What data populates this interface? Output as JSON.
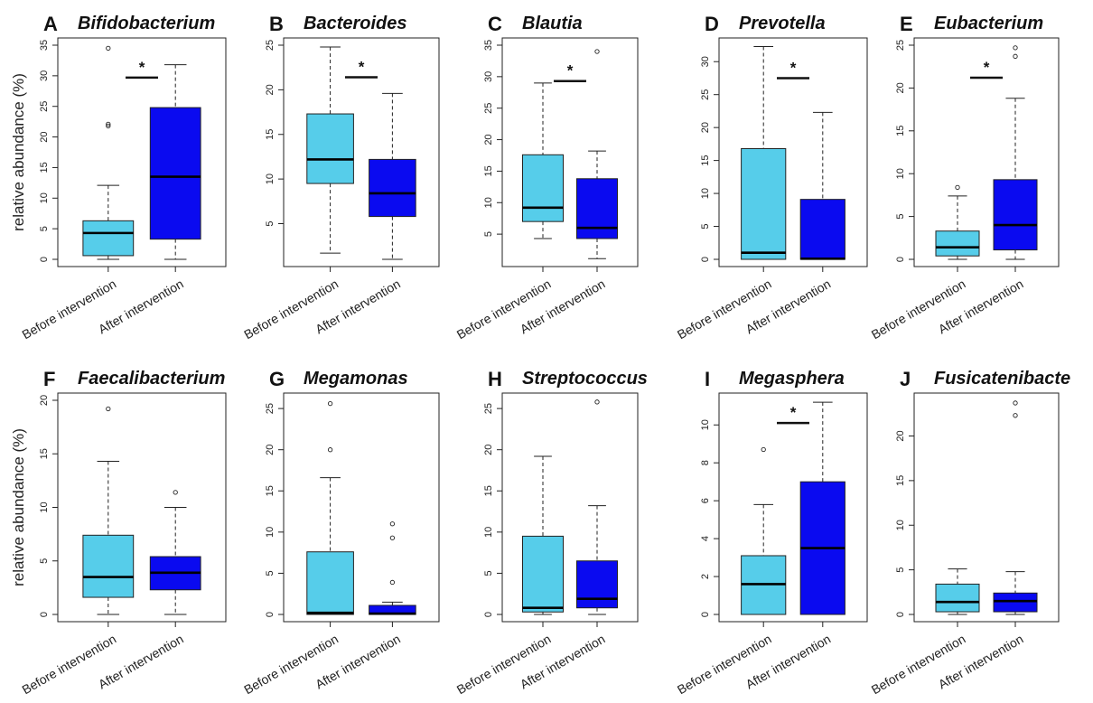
{
  "colors": {
    "before": "#56cdea",
    "after": "#0a0af0",
    "median": "#000000",
    "frame": "#222222"
  },
  "chart_data": [
    {
      "type": "box",
      "letter": "A",
      "title": "Bifidobacterium",
      "ylabel": "relative abundance (%)",
      "ylim": [
        0,
        35
      ],
      "yticks": [
        0,
        5,
        10,
        15,
        20,
        25,
        30,
        35
      ],
      "categories": [
        "Before intervention",
        "After intervention"
      ],
      "boxes": [
        {
          "min": 0,
          "q1": 0.6,
          "median": 4.3,
          "q3": 6.3,
          "max": 12.1,
          "outliers": [
            21.8,
            22.1,
            34.5
          ]
        },
        {
          "min": 0,
          "q1": 3.3,
          "median": 13.5,
          "q3": 24.8,
          "max": 31.8,
          "outliers": []
        }
      ],
      "significance": {
        "label": "*",
        "y": 29.7
      }
    },
    {
      "type": "box",
      "letter": "B",
      "title": "Bacteroides",
      "ylabel": "",
      "ylim": [
        1,
        25
      ],
      "yticks": [
        5,
        10,
        15,
        20,
        25
      ],
      "categories": [
        "Before intervention",
        "After intervention"
      ],
      "boxes": [
        {
          "min": 1.7,
          "q1": 9.5,
          "median": 12.2,
          "q3": 17.3,
          "max": 24.8,
          "outliers": []
        },
        {
          "min": 1.0,
          "q1": 5.8,
          "median": 8.4,
          "q3": 12.2,
          "max": 19.6,
          "outliers": []
        }
      ],
      "significance": {
        "label": "*",
        "y": 21.4
      }
    },
    {
      "type": "box",
      "letter": "C",
      "title": "Blautia",
      "ylabel": "",
      "ylim": [
        1,
        35
      ],
      "yticks": [
        5,
        10,
        15,
        20,
        25,
        30,
        35
      ],
      "categories": [
        "Before intervention",
        "After intervention"
      ],
      "boxes": [
        {
          "min": 4.3,
          "q1": 7.0,
          "median": 9.2,
          "q3": 17.6,
          "max": 29.0,
          "outliers": []
        },
        {
          "min": 1.1,
          "q1": 4.3,
          "median": 6.0,
          "q3": 13.8,
          "max": 18.2,
          "outliers": [
            34.0
          ]
        }
      ],
      "significance": {
        "label": "*",
        "y": 29.3
      }
    },
    {
      "type": "box",
      "letter": "D",
      "title": "Prevotella",
      "ylabel": "",
      "ylim": [
        0,
        32.5
      ],
      "yticks": [
        0,
        5,
        10,
        15,
        20,
        25,
        30
      ],
      "categories": [
        "Before intervention",
        "After intervention"
      ],
      "boxes": [
        {
          "min": 0,
          "q1": 0,
          "median": 1.0,
          "q3": 16.8,
          "max": 32.3,
          "outliers": []
        },
        {
          "min": 0,
          "q1": 0,
          "median": 0.1,
          "q3": 9.1,
          "max": 22.3,
          "outliers": []
        }
      ],
      "significance": {
        "label": "*",
        "y": 27.5
      }
    },
    {
      "type": "box",
      "letter": "E",
      "title": "Eubacterium",
      "ylabel": "",
      "ylim": [
        0,
        25
      ],
      "yticks": [
        0,
        5,
        10,
        15,
        20,
        25
      ],
      "categories": [
        "Before intervention",
        "After intervention"
      ],
      "boxes": [
        {
          "min": 0,
          "q1": 0.4,
          "median": 1.4,
          "q3": 3.3,
          "max": 7.4,
          "outliers": [
            8.4
          ]
        },
        {
          "min": 0,
          "q1": 1.1,
          "median": 4.0,
          "q3": 9.3,
          "max": 18.8,
          "outliers": [
            23.7,
            24.7
          ]
        }
      ],
      "significance": {
        "label": "*",
        "y": 21.2
      }
    },
    {
      "type": "box",
      "letter": "F",
      "title": "Faecalibacterium",
      "ylabel": "relative abundance (%)",
      "ylim": [
        0,
        20
      ],
      "yticks": [
        0,
        5,
        10,
        15,
        20
      ],
      "categories": [
        "Before intervention",
        "After intervention"
      ],
      "boxes": [
        {
          "min": 0,
          "q1": 1.6,
          "median": 3.5,
          "q3": 7.4,
          "max": 14.3,
          "outliers": [
            19.2
          ]
        },
        {
          "min": 0,
          "q1": 2.3,
          "median": 3.9,
          "q3": 5.4,
          "max": 10.0,
          "outliers": [
            11.4
          ]
        }
      ],
      "significance": null
    },
    {
      "type": "box",
      "letter": "G",
      "title": "Megamonas",
      "ylabel": "",
      "ylim": [
        0,
        26
      ],
      "yticks": [
        0,
        5,
        10,
        15,
        20,
        25
      ],
      "categories": [
        "Before intervention",
        "After intervention"
      ],
      "boxes": [
        {
          "min": 0,
          "q1": 0,
          "median": 0.2,
          "q3": 7.6,
          "max": 16.6,
          "outliers": [
            20.0,
            25.6
          ]
        },
        {
          "min": 0,
          "q1": 0,
          "median": 0.1,
          "q3": 1.1,
          "max": 1.5,
          "outliers": [
            3.9,
            9.3,
            11.0
          ]
        }
      ],
      "significance": null
    },
    {
      "type": "box",
      "letter": "H",
      "title": "Streptococcus",
      "ylabel": "",
      "ylim": [
        0,
        26
      ],
      "yticks": [
        0,
        5,
        10,
        15,
        20,
        25
      ],
      "categories": [
        "Before intervention",
        "After intervention"
      ],
      "boxes": [
        {
          "min": 0,
          "q1": 0.3,
          "median": 0.8,
          "q3": 9.5,
          "max": 19.2,
          "outliers": []
        },
        {
          "min": 0,
          "q1": 0.8,
          "median": 1.9,
          "q3": 6.5,
          "max": 13.2,
          "outliers": [
            25.8
          ]
        }
      ],
      "significance": null
    },
    {
      "type": "box",
      "letter": "I",
      "title": "Megasphera",
      "ylabel": "",
      "ylim": [
        0,
        11.3
      ],
      "yticks": [
        0,
        2,
        4,
        6,
        8,
        10
      ],
      "categories": [
        "Before intervention",
        "After intervention"
      ],
      "boxes": [
        {
          "min": 0,
          "q1": 0,
          "median": 1.6,
          "q3": 3.1,
          "max": 5.8,
          "outliers": [
            8.7
          ]
        },
        {
          "min": 0,
          "q1": 0,
          "median": 3.5,
          "q3": 7.0,
          "max": 11.2,
          "outliers": []
        }
      ],
      "significance": {
        "label": "*",
        "y": 10.1
      }
    },
    {
      "type": "box",
      "letter": "J",
      "title": "Fusicatenibacte",
      "ylabel": "",
      "ylim": [
        0,
        24
      ],
      "yticks": [
        0,
        5,
        10,
        15,
        20
      ],
      "categories": [
        "Before intervention",
        "After intervention"
      ],
      "boxes": [
        {
          "min": 0,
          "q1": 0.3,
          "median": 1.4,
          "q3": 3.4,
          "max": 5.1,
          "outliers": []
        },
        {
          "min": 0,
          "q1": 0.3,
          "median": 1.5,
          "q3": 2.4,
          "max": 4.8,
          "outliers": [
            22.3,
            23.7
          ]
        }
      ],
      "significance": null
    }
  ]
}
